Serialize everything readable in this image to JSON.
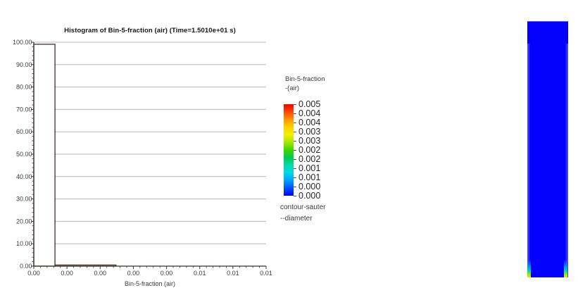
{
  "chart_data": {
    "type": "bar",
    "title": "Histogram of Bin-5-fraction (air) (Time=1.5010e+01 s)",
    "xlabel": "Bin-5-fraction (air)",
    "ylabel": "",
    "xlim": [
      0,
      0.00735
    ],
    "ylim": [
      0,
      100
    ],
    "grid": true,
    "x_tick_labels": [
      "0.00",
      "0.00",
      "0.00",
      "0.00",
      "0.00",
      "0.01",
      "0.01",
      "0.01"
    ],
    "y_tick_labels": [
      "0.00",
      "10.00",
      "20.00",
      "30.00",
      "40.00",
      "50.00",
      "60.00",
      "70.00",
      "80.00",
      "90.00",
      "100.00"
    ],
    "bars": [
      {
        "x0": 0.0,
        "x1": 0.00067,
        "height": 99.1
      },
      {
        "x0": 0.00067,
        "x1": 0.0026,
        "height": 0.5
      }
    ],
    "bar_fill": "#ffffff",
    "bar_stroke": "#3f322c",
    "axis_color": "#3f322c",
    "grid_color": "#b8b8b8",
    "tick_label_color": "#3c3c3c"
  },
  "legend": {
    "title_line1": "Bin-5-fraction",
    "title_line2": "-(air)",
    "labels": [
      "0.005",
      "0.004",
      "0.004",
      "0.003",
      "0.003",
      "0.002",
      "0.002",
      "0.001",
      "0.001",
      "0.000",
      "0.000"
    ],
    "caption_line1": "contour-sauter",
    "caption_line2": "--diameter",
    "colors": [
      "#f60002",
      "#ff4600",
      "#ff9600",
      "#ffd200",
      "#f2f000",
      "#a0e800",
      "#3cd800",
      "#00c850",
      "#00dcaa",
      "#00d8e6",
      "#00a0ff",
      "#0050ff",
      "#0000fe"
    ]
  },
  "contour": {
    "base_color": "#0201fb",
    "top_highlight_color": "#9a9aff",
    "edge_gradient": [
      "#5050ff",
      "#1212fd 85%"
    ],
    "streak_gradient": [
      "rgba(2,1,251,0) 0%",
      "#0096ff 40%",
      "#00dc8c 64%",
      "#96f000 85%",
      "#ffd200 98%"
    ]
  }
}
